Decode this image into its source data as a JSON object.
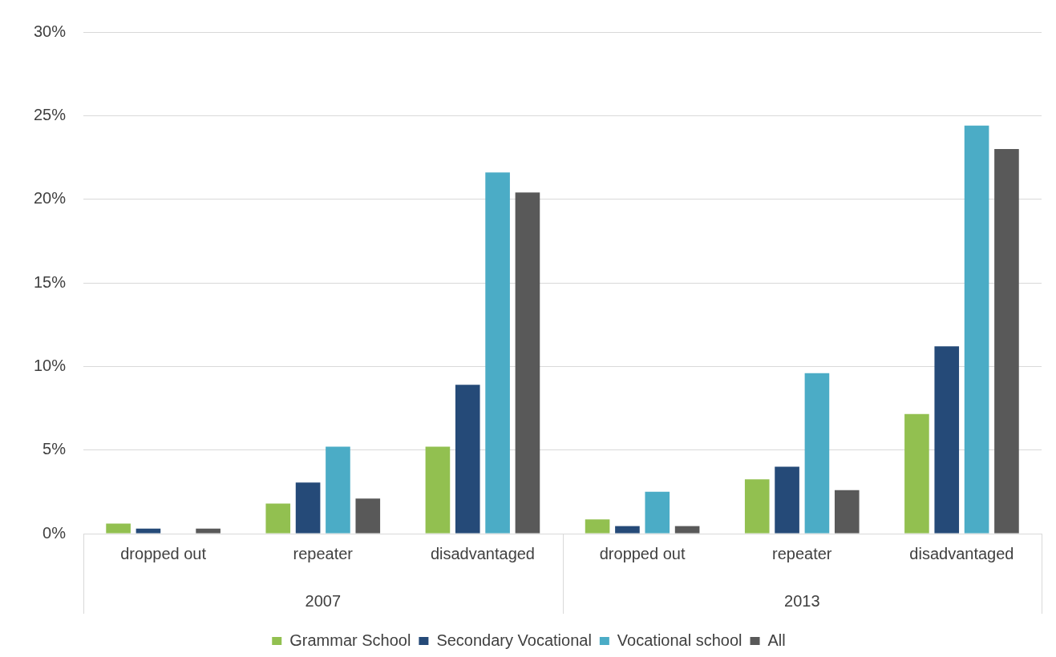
{
  "chart_data": {
    "type": "bar",
    "categories": [
      "dropped out",
      "repeater",
      "disadvantaged",
      "dropped out",
      "repeater",
      "disadvantaged"
    ],
    "annotations": [
      "2007",
      "2013"
    ],
    "series": [
      {
        "name": "Grammar School",
        "color": "#92c050",
        "values": [
          0.6,
          1.8,
          5.2,
          0.85,
          3.25,
          7.15
        ]
      },
      {
        "name": "Secondary Vocational",
        "color": "#254a78",
        "values": [
          0.3,
          3.05,
          8.9,
          0.45,
          4.0,
          11.2
        ]
      },
      {
        "name": "Vocational school",
        "color": "#4bacc6",
        "values": [
          0,
          5.2,
          21.6,
          2.5,
          9.6,
          24.4
        ]
      },
      {
        "name": "All",
        "color": "#595959",
        "values": [
          0.3,
          2.1,
          20.4,
          0.45,
          2.6,
          23.0
        ]
      }
    ],
    "ylim": [
      0,
      30
    ],
    "yticks": [
      {
        "value": 0,
        "label": "0%"
      },
      {
        "value": 5,
        "label": "5%"
      },
      {
        "value": 10,
        "label": "10%"
      },
      {
        "value": 15,
        "label": "15%"
      },
      {
        "value": 20,
        "label": "20%"
      },
      {
        "value": 25,
        "label": "25%"
      },
      {
        "value": 30,
        "label": "30%"
      }
    ],
    "grid": "y",
    "legend": "bottom",
    "marker": "square"
  }
}
